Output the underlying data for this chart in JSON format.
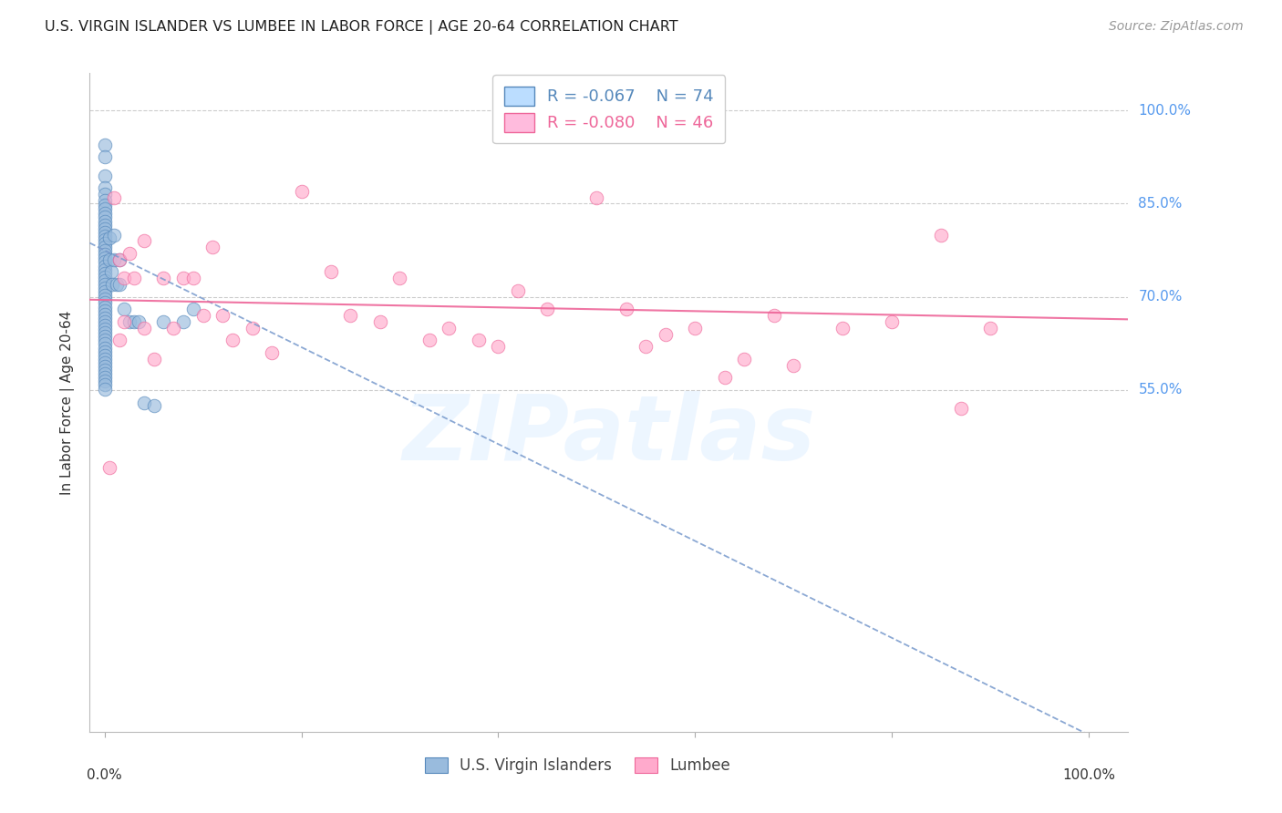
{
  "title": "U.S. VIRGIN ISLANDER VS LUMBEE IN LABOR FORCE | AGE 20-64 CORRELATION CHART",
  "source": "Source: ZipAtlas.com",
  "ylabel": "In Labor Force | Age 20-64",
  "y_ticks": [
    0.55,
    0.7,
    0.85,
    1.0
  ],
  "y_tick_labels": [
    "55.0%",
    "70.0%",
    "85.0%",
    "100.0%"
  ],
  "x_ticks": [
    0.0,
    0.2,
    0.4,
    0.6,
    0.8,
    1.0
  ],
  "xlim": [
    -0.015,
    1.04
  ],
  "ylim": [
    0.0,
    1.06
  ],
  "blue_R": -0.067,
  "blue_N": 74,
  "pink_R": -0.08,
  "pink_N": 46,
  "blue_color": "#99BBDD",
  "pink_color": "#FFAACC",
  "blue_edge_color": "#5588BB",
  "pink_edge_color": "#EE6699",
  "blue_trend_color": "#7799CC",
  "pink_trend_color": "#EE6699",
  "blue_trend_intercept": 0.775,
  "blue_trend_slope": -0.78,
  "pink_trend_intercept": 0.695,
  "pink_trend_slope": -0.03,
  "watermark_text": "ZIPatlas",
  "bg_color": "#FFFFFF",
  "grid_color": "#CCCCCC",
  "title_color": "#222222",
  "right_label_color": "#5599EE",
  "legend_fill_blue": "#BBDDFF",
  "legend_fill_pink": "#FFBBDD",
  "legend_edge_blue": "#5588BB",
  "legend_edge_pink": "#EE6699",
  "blue_scatter_x": [
    0.0,
    0.0,
    0.0,
    0.0,
    0.0,
    0.0,
    0.0,
    0.0,
    0.0,
    0.0,
    0.0,
    0.0,
    0.0,
    0.0,
    0.0,
    0.0,
    0.0,
    0.0,
    0.0,
    0.0,
    0.0,
    0.0,
    0.0,
    0.0,
    0.0,
    0.0,
    0.0,
    0.0,
    0.0,
    0.0,
    0.0,
    0.0,
    0.0,
    0.0,
    0.0,
    0.0,
    0.0,
    0.0,
    0.0,
    0.0,
    0.0,
    0.0,
    0.0,
    0.0,
    0.0,
    0.0,
    0.0,
    0.0,
    0.0,
    0.0,
    0.0,
    0.0,
    0.0,
    0.0,
    0.0,
    0.0,
    0.005,
    0.005,
    0.007,
    0.008,
    0.01,
    0.01,
    0.012,
    0.015,
    0.015,
    0.02,
    0.025,
    0.03,
    0.035,
    0.04,
    0.05,
    0.06,
    0.08,
    0.09
  ],
  "blue_scatter_y": [
    0.945,
    0.925,
    0.895,
    0.875,
    0.865,
    0.855,
    0.848,
    0.842,
    0.835,
    0.828,
    0.822,
    0.816,
    0.81,
    0.804,
    0.798,
    0.792,
    0.786,
    0.78,
    0.774,
    0.768,
    0.762,
    0.756,
    0.75,
    0.744,
    0.738,
    0.732,
    0.726,
    0.72,
    0.714,
    0.708,
    0.702,
    0.696,
    0.69,
    0.684,
    0.678,
    0.672,
    0.666,
    0.66,
    0.654,
    0.648,
    0.642,
    0.636,
    0.63,
    0.624,
    0.618,
    0.612,
    0.606,
    0.6,
    0.594,
    0.588,
    0.582,
    0.576,
    0.57,
    0.564,
    0.558,
    0.552,
    0.795,
    0.76,
    0.74,
    0.72,
    0.8,
    0.76,
    0.72,
    0.76,
    0.72,
    0.68,
    0.66,
    0.66,
    0.66,
    0.53,
    0.525,
    0.66,
    0.66,
    0.68
  ],
  "pink_scatter_x": [
    0.005,
    0.01,
    0.015,
    0.015,
    0.02,
    0.02,
    0.025,
    0.03,
    0.04,
    0.04,
    0.05,
    0.06,
    0.07,
    0.08,
    0.09,
    0.1,
    0.11,
    0.12,
    0.13,
    0.15,
    0.17,
    0.2,
    0.23,
    0.25,
    0.28,
    0.3,
    0.33,
    0.35,
    0.38,
    0.4,
    0.42,
    0.45,
    0.5,
    0.53,
    0.55,
    0.57,
    0.6,
    0.63,
    0.65,
    0.68,
    0.7,
    0.75,
    0.8,
    0.85,
    0.87,
    0.9
  ],
  "pink_scatter_y": [
    0.425,
    0.86,
    0.76,
    0.63,
    0.73,
    0.66,
    0.77,
    0.73,
    0.79,
    0.65,
    0.6,
    0.73,
    0.65,
    0.73,
    0.73,
    0.67,
    0.78,
    0.67,
    0.63,
    0.65,
    0.61,
    0.87,
    0.74,
    0.67,
    0.66,
    0.73,
    0.63,
    0.65,
    0.63,
    0.62,
    0.71,
    0.68,
    0.86,
    0.68,
    0.62,
    0.64,
    0.65,
    0.57,
    0.6,
    0.67,
    0.59,
    0.65,
    0.66,
    0.8,
    0.52,
    0.65
  ]
}
